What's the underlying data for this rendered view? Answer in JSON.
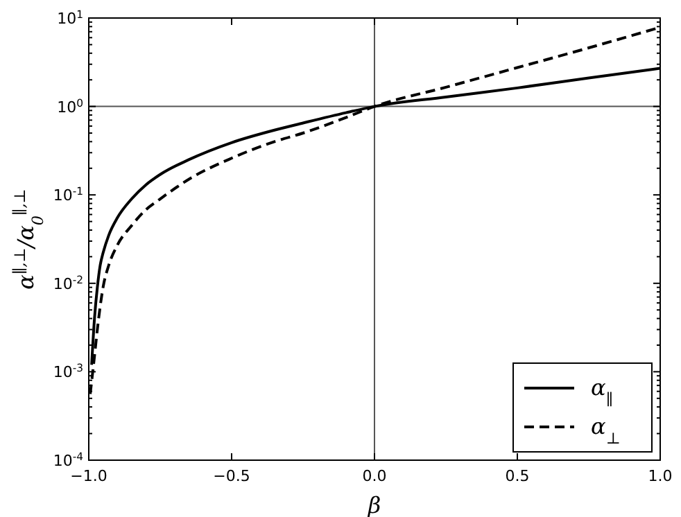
{
  "chart_data": {
    "type": "line",
    "xlabel": "β",
    "ylabel": "α$^{∥,⊥}$/α$_{0}$$^{∥,⊥}$",
    "log": "y",
    "xlim": [
      -1,
      1
    ],
    "ylim": [
      0.0001,
      10
    ],
    "xticks": [
      {
        "value": -1,
        "label": "−1.0"
      },
      {
        "value": -0.5,
        "label": "−0.5"
      },
      {
        "value": 0,
        "label": "0.0"
      },
      {
        "value": 0.5,
        "label": "0.5"
      },
      {
        "value": 1,
        "label": "1.0"
      }
    ],
    "yticks": [
      {
        "value": 0.0001,
        "label": "10$^{-4}$"
      },
      {
        "value": 0.001,
        "label": "10$^{-3}$"
      },
      {
        "value": 0.01,
        "label": "10$^{-2}$"
      },
      {
        "value": 0.1,
        "label": "10$^{-1}$"
      },
      {
        "value": 1,
        "label": "10$^{0}$"
      },
      {
        "value": 10,
        "label": "10$^{1}$"
      }
    ],
    "ref_lines": [
      {
        "axis": "y",
        "value": 1,
        "color": "#555555"
      },
      {
        "axis": "x",
        "value": 0,
        "color": "#555555"
      }
    ],
    "legend": "bottom right",
    "series": [
      {
        "name": "α$_{∥}$",
        "color": "#000000",
        "line_style": "solid",
        "x": [
          -0.99,
          -0.98,
          -0.97,
          -0.96,
          -0.95,
          -0.93,
          -0.9,
          -0.85,
          -0.8,
          -0.75,
          -0.65,
          -0.5,
          -0.35,
          -0.25,
          -0.1,
          0,
          0.25,
          0.5,
          0.75,
          1
        ],
        "values": [
          0.0012,
          0.004,
          0.009,
          0.016,
          0.022,
          0.035,
          0.055,
          0.09,
          0.13,
          0.17,
          0.25,
          0.39,
          0.54,
          0.65,
          0.85,
          1,
          1.28,
          1.62,
          2.1,
          2.7
        ]
      },
      {
        "name": "α$_{⊥}$",
        "color": "#000000",
        "line_style": "dashed",
        "x": [
          -0.995,
          -0.98,
          -0.97,
          -0.96,
          -0.95,
          -0.93,
          -0.9,
          -0.85,
          -0.8,
          -0.75,
          -0.65,
          -0.5,
          -0.35,
          -0.25,
          -0.1,
          0,
          0.25,
          0.5,
          0.75,
          1
        ],
        "values": [
          0.00056,
          0.0015,
          0.003,
          0.0055,
          0.009,
          0.016,
          0.027,
          0.045,
          0.068,
          0.09,
          0.15,
          0.26,
          0.4,
          0.5,
          0.75,
          1,
          1.65,
          2.75,
          4.6,
          7.85
        ]
      }
    ]
  }
}
